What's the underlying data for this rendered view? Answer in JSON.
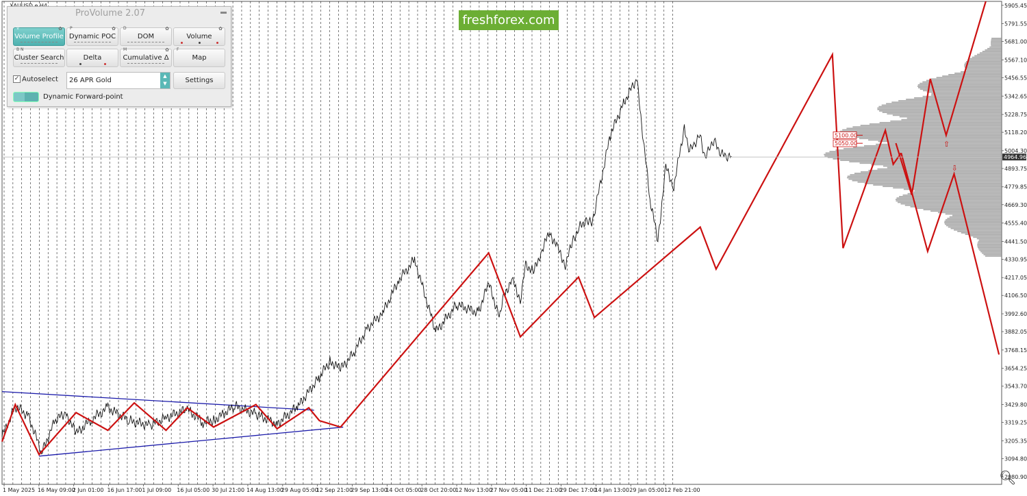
{
  "symbol_label": "XAUUSD,e,H4",
  "logo": "freshforex.com",
  "panel": {
    "title": "ProVolume 2.07",
    "buttons": [
      {
        "label": "Volume Profile",
        "key": "V",
        "active": true
      },
      {
        "label": "Dynamic POC",
        "key": "P",
        "active": false
      },
      {
        "label": "DOM",
        "key": "D",
        "active": false
      },
      {
        "label": "Volume",
        "key": "",
        "active": false
      },
      {
        "label": "Cluster Search",
        "key": "B   N",
        "active": false
      },
      {
        "label": "Delta",
        "key": "",
        "active": false
      },
      {
        "label": "Cumulative Δ",
        "key": "M",
        "active": false
      },
      {
        "label": "Map",
        "key": "F",
        "active": false
      }
    ],
    "autoselect_label": "Autoselect",
    "symbol_select": "26 APR Gold",
    "settings_label": "Settings",
    "toggle_label": "Dynamic Forward-point"
  },
  "chart_data": {
    "type": "line",
    "y_ticks": [
      "5905.45",
      "5791.55",
      "5681.00",
      "5567.10",
      "5456.55",
      "5342.65",
      "5228.75",
      "5118.20",
      "5004.30",
      "4893.75",
      "4779.85",
      "4669.30",
      "4555.40",
      "4441.50",
      "4330.95",
      "4217.05",
      "4106.50",
      "3992.60",
      "3882.05",
      "3768.15",
      "3654.25",
      "3543.70",
      "3429.80",
      "3319.25",
      "3205.35",
      "3094.80",
      "2980.90"
    ],
    "x_ticks": [
      "1 May 2025",
      "16 May 09:00",
      "2 Jun 01:00",
      "16 Jun 17:00",
      "1 Jul 09:00",
      "16 Jul 05:00",
      "30 Jul 21:00",
      "14 Aug 13:00",
      "29 Aug 05:00",
      "12 Sep 21:00",
      "29 Sep 13:00",
      "14 Oct 05:00",
      "28 Oct 20:00",
      "12 Nov 13:00",
      "27 Nov 05:00",
      "11 Dec 21:00",
      "29 Dec 17:00",
      "14 Jan 13:00",
      "29 Jan 05:00",
      "12 Feb 21:00"
    ],
    "ylim": [
      2935,
      5930
    ],
    "current_price": "4964.96",
    "price_labels": [
      "5100.00",
      "5050.00"
    ],
    "price_series_x": [
      0,
      5,
      10,
      15,
      20,
      24,
      28,
      34,
      40,
      48,
      56,
      62,
      70,
      76,
      80,
      88,
      96,
      104,
      112,
      120,
      124,
      128,
      133,
      138,
      144,
      150,
      156,
      164,
      172,
      180,
      184,
      188,
      190,
      193,
      196,
      198,
      201,
      204,
      207,
      210,
      213,
      216,
      218,
      221,
      223,
      225,
      230,
      235,
      240,
      245,
      248,
      251,
      254,
      258,
      260,
      262,
      264,
      266,
      268,
      270,
      272,
      274,
      276
    ],
    "price_series_y": [
      3230,
      3420,
      3360,
      3130,
      3330,
      3380,
      3250,
      3340,
      3410,
      3330,
      3300,
      3350,
      3400,
      3320,
      3330,
      3420,
      3370,
      3310,
      3420,
      3600,
      3700,
      3650,
      3750,
      3900,
      4000,
      4200,
      4330,
      3880,
      4050,
      4000,
      4180,
      3980,
      4120,
      4200,
      4080,
      4300,
      4250,
      4380,
      4500,
      4400,
      4300,
      4450,
      4520,
      4580,
      4550,
      4700,
      5100,
      5300,
      5450,
      4700,
      4450,
      4900,
      4780,
      5150,
      5000,
      5050,
      5100,
      4950,
      5050,
      5050,
      4980,
      4970,
      4965
    ],
    "zigzag_series": {
      "color": "#cc1111",
      "points": [
        [
          0,
          3200
        ],
        [
          5,
          3430
        ],
        [
          14,
          3120
        ],
        [
          28,
          3380
        ],
        [
          40,
          3270
        ],
        [
          50,
          3440
        ],
        [
          62,
          3270
        ],
        [
          70,
          3410
        ],
        [
          80,
          3290
        ],
        [
          96,
          3430
        ],
        [
          104,
          3280
        ],
        [
          116,
          3410
        ],
        [
          120,
          3330
        ],
        [
          128,
          3290
        ],
        [
          184,
          4370
        ],
        [
          196,
          3850
        ],
        [
          218,
          4220
        ],
        [
          224,
          3970
        ],
        [
          264,
          4530
        ],
        [
          270,
          4270
        ],
        [
          314,
          5600
        ],
        [
          318,
          4400
        ],
        [
          334,
          5130
        ],
        [
          337,
          4920
        ],
        [
          340,
          4990
        ]
      ]
    },
    "triangle_lines": {
      "color": "#1a1aaa",
      "upper": [
        [
          0,
          3510
        ],
        [
          118,
          3395
        ]
      ],
      "lower": [
        [
          14,
          3110
        ],
        [
          129,
          3290
        ]
      ]
    },
    "forecast_series": {
      "color": "#cc1111",
      "points": [
        [
          338,
          5050
        ],
        [
          344,
          4730
        ],
        [
          351,
          5450
        ],
        [
          357,
          5100
        ],
        [
          372,
          5930
        ]
      ]
    },
    "forecast_down_series": {
      "color": "#cc1111",
      "points": [
        [
          340,
          4990
        ],
        [
          350,
          4380
        ],
        [
          360,
          4860
        ],
        [
          377,
          3740
        ]
      ]
    }
  }
}
